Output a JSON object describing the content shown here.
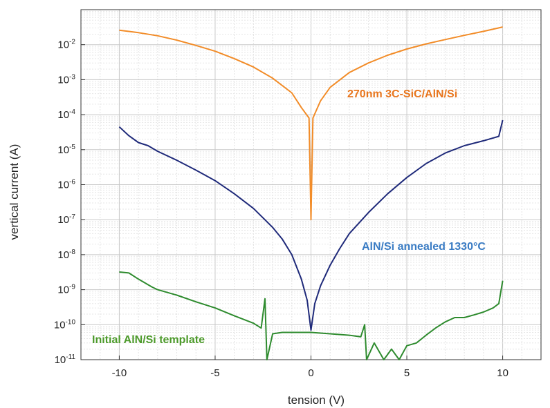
{
  "chart_data": {
    "type": "line",
    "title": "",
    "xlabel": "tension (V)",
    "ylabel": "vertical current (A)",
    "y_scale": "log",
    "xlim": [
      -12,
      12
    ],
    "ylim": [
      1e-11,
      0.1
    ],
    "grid": true,
    "x_ticks": [
      -10,
      -5,
      0,
      5,
      10
    ],
    "x_tick_labels": [
      "-10",
      "-5",
      "0",
      "5",
      "10"
    ],
    "y_ticks": [
      {
        "base": "10",
        "exp": "-2",
        "value": 0.01
      },
      {
        "base": "10",
        "exp": "-3",
        "value": 0.001
      },
      {
        "base": "10",
        "exp": "-4",
        "value": 0.0001
      },
      {
        "base": "10",
        "exp": "-5",
        "value": 1e-05
      },
      {
        "base": "10",
        "exp": "-6",
        "value": 1e-06
      },
      {
        "base": "10",
        "exp": "-7",
        "value": 1e-07
      },
      {
        "base": "10",
        "exp": "-8",
        "value": 1e-08
      },
      {
        "base": "10",
        "exp": "-9",
        "value": 1e-09
      },
      {
        "base": "10",
        "exp": "-10",
        "value": 1e-10
      },
      {
        "base": "10",
        "exp": "-11",
        "value": 1e-11
      }
    ],
    "series": [
      {
        "name": "270nm 3C-SiC/AlN/Si",
        "color": "#F28C28",
        "label_color": "#E8761E",
        "points": [
          [
            -10,
            0.026
          ],
          [
            -9,
            0.022
          ],
          [
            -8,
            0.018
          ],
          [
            -7,
            0.0135
          ],
          [
            -6,
            0.0095
          ],
          [
            -5,
            0.0065
          ],
          [
            -4,
            0.004
          ],
          [
            -3,
            0.0023
          ],
          [
            -2,
            0.0011
          ],
          [
            -1,
            0.00042
          ],
          [
            -0.5,
            0.00016
          ],
          [
            -0.1,
            8e-05
          ],
          [
            0,
            1e-07
          ],
          [
            0.1,
            8e-05
          ],
          [
            0.5,
            0.00025
          ],
          [
            1,
            0.0006
          ],
          [
            2,
            0.0016
          ],
          [
            3,
            0.003
          ],
          [
            4,
            0.005
          ],
          [
            5,
            0.0075
          ],
          [
            6,
            0.0105
          ],
          [
            7,
            0.014
          ],
          [
            8,
            0.0185
          ],
          [
            9,
            0.024
          ],
          [
            10,
            0.032
          ]
        ]
      },
      {
        "name": "AlN/Si annealed 1330°C",
        "color": "#1F2A7A",
        "label_color": "#3A7CC4",
        "points": [
          [
            -10,
            4.5e-05
          ],
          [
            -9.5,
            2.5e-05
          ],
          [
            -9,
            1.6e-05
          ],
          [
            -8.5,
            1.3e-05
          ],
          [
            -8,
            9e-06
          ],
          [
            -7,
            5e-06
          ],
          [
            -6,
            2.6e-06
          ],
          [
            -5,
            1.3e-06
          ],
          [
            -4,
            5.5e-07
          ],
          [
            -3,
            2.1e-07
          ],
          [
            -2,
            6e-08
          ],
          [
            -1.5,
            2.8e-08
          ],
          [
            -1,
            1e-08
          ],
          [
            -0.5,
            2e-09
          ],
          [
            -0.2,
            5e-10
          ],
          [
            0,
            7e-11
          ],
          [
            0.2,
            4e-10
          ],
          [
            0.5,
            1.3e-09
          ],
          [
            1,
            5e-09
          ],
          [
            1.5,
            1.5e-08
          ],
          [
            2,
            4e-08
          ],
          [
            3,
            1.6e-07
          ],
          [
            4,
            5.5e-07
          ],
          [
            5,
            1.6e-06
          ],
          [
            6,
            4e-06
          ],
          [
            7,
            8e-06
          ],
          [
            8,
            1.3e-05
          ],
          [
            9,
            1.8e-05
          ],
          [
            9.8,
            2.4e-05
          ],
          [
            10,
            7e-05
          ]
        ]
      },
      {
        "name": "Initial AlN/Si template",
        "color": "#2E8B2E",
        "label_color": "#4C9A2A",
        "points": [
          [
            -10,
            3.2e-09
          ],
          [
            -9.5,
            3e-09
          ],
          [
            -9,
            2e-09
          ],
          [
            -8.3,
            1.2e-09
          ],
          [
            -8,
            1e-09
          ],
          [
            -7,
            7e-10
          ],
          [
            -6,
            4.5e-10
          ],
          [
            -5,
            3e-10
          ],
          [
            -4,
            1.8e-10
          ],
          [
            -3,
            1.1e-10
          ],
          [
            -2.6,
            8e-11
          ],
          [
            -2.4,
            5.5e-10
          ],
          [
            -2.3,
            1e-11
          ],
          [
            -2.0,
            5.5e-11
          ],
          [
            -1.5,
            6e-11
          ],
          [
            -1,
            6e-11
          ],
          [
            0,
            6e-11
          ],
          [
            1,
            5.5e-11
          ],
          [
            2,
            5e-11
          ],
          [
            2.6,
            4.5e-11
          ],
          [
            2.8,
            1e-10
          ],
          [
            2.9,
            1e-11
          ],
          [
            3.3,
            3e-11
          ],
          [
            3.8,
            1e-11
          ],
          [
            4.2,
            2e-11
          ],
          [
            4.6,
            1e-11
          ],
          [
            5,
            2.5e-11
          ],
          [
            5.5,
            3e-11
          ],
          [
            6,
            5e-11
          ],
          [
            6.5,
            8e-11
          ],
          [
            7,
            1.2e-10
          ],
          [
            7.5,
            1.6e-10
          ],
          [
            8,
            1.6e-10
          ],
          [
            8.5,
            1.9e-10
          ],
          [
            9,
            2.3e-10
          ],
          [
            9.5,
            3e-10
          ],
          [
            9.8,
            4e-10
          ],
          [
            10,
            1.8e-09
          ]
        ]
      }
    ]
  }
}
